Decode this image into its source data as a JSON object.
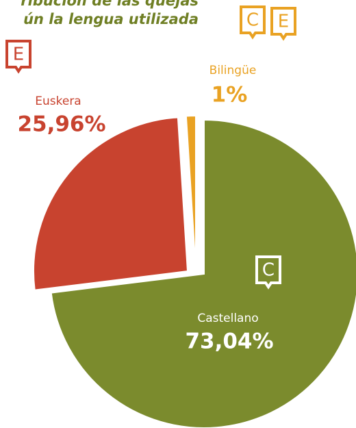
{
  "chart_data": {
    "type": "pie",
    "title_lines": [
      "ribución de las quejas",
      "ún la lengua utilizada"
    ],
    "categories": [
      "Castellano",
      "Euskera",
      "Bilingüe"
    ],
    "values": [
      73.04,
      25.96,
      1
    ],
    "value_labels": [
      "73,04%",
      "25,96%",
      "1%"
    ],
    "colors": [
      "#7b8b2d",
      "#c8432f",
      "#e9a223"
    ],
    "icons": [
      [
        "C"
      ],
      [
        "E"
      ],
      [
        "C",
        "E"
      ]
    ]
  }
}
